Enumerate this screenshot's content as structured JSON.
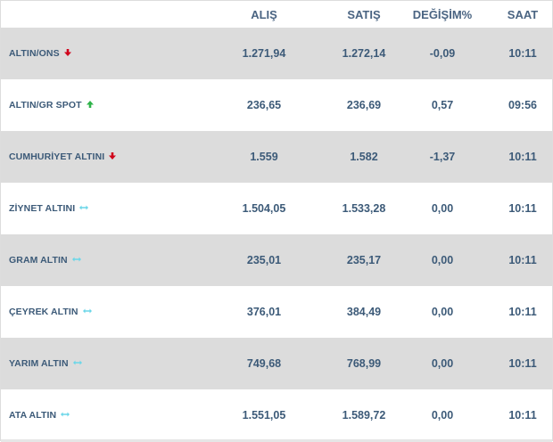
{
  "header": {
    "alis": "ALIŞ",
    "satis": "SATIŞ",
    "degisim": "DEĞİŞİM%",
    "saat": "SAAT"
  },
  "colors": {
    "down": "#d0021b",
    "up": "#2fb34a",
    "flat": "#6ad6e8"
  },
  "rows": [
    {
      "name": "ALTIN/ONS",
      "trend": "down-arrow-icon",
      "alis": "1.271,94",
      "satis": "1.272,14",
      "degisim": "-0,09",
      "saat": "10:11"
    },
    {
      "name": "ALTIN/GR SPOT",
      "trend": "up-arrow-icon",
      "alis": "236,65",
      "satis": "236,69",
      "degisim": "0,57",
      "saat": "09:56"
    },
    {
      "name": "CUMHURİYET ALTINI",
      "trend": "down-arrow-icon",
      "alis": "1.559",
      "satis": "1.582",
      "degisim": "-1,37",
      "saat": "10:11"
    },
    {
      "name": "ZİYNET ALTINI",
      "trend": "flat-arrow-icon",
      "alis": "1.504,05",
      "satis": "1.533,28",
      "degisim": "0,00",
      "saat": "10:11"
    },
    {
      "name": "GRAM ALTIN",
      "trend": "flat-arrow-icon",
      "alis": "235,01",
      "satis": "235,17",
      "degisim": "0,00",
      "saat": "10:11"
    },
    {
      "name": "ÇEYREK ALTIN",
      "trend": "flat-arrow-icon",
      "alis": "376,01",
      "satis": "384,49",
      "degisim": "0,00",
      "saat": "10:11"
    },
    {
      "name": "YARIM ALTIN",
      "trend": "flat-arrow-icon",
      "alis": "749,68",
      "satis": "768,99",
      "degisim": "0,00",
      "saat": "10:11"
    },
    {
      "name": "ATA ALTIN",
      "trend": "flat-arrow-icon",
      "alis": "1.551,05",
      "satis": "1.589,72",
      "degisim": "0,00",
      "saat": "10:11"
    }
  ]
}
